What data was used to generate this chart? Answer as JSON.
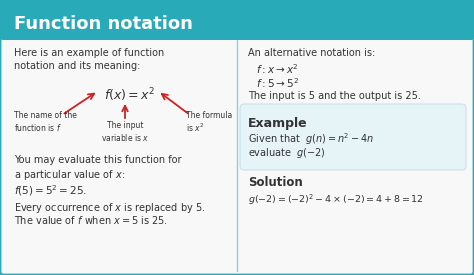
{
  "title": "Function notation",
  "title_color": "#ffffff",
  "title_bg_color": "#29aab8",
  "bg_color": "#f8f8f8",
  "border_color": "#29aab8",
  "text_color": "#333333",
  "red_color": "#cc2222",
  "example_bg": "#e6f3f7",
  "line1": "Here is an example of function",
  "line2": "notation and its meaning:",
  "annotation_formula": "$f(x) = x^2$",
  "label_name": "The name of the\nfunction is $f$",
  "label_input": "The input\nvariable is $x$",
  "label_formula": "The formula\nis $x^2$",
  "alt_notation_intro": "An alternative notation is:",
  "alt_line1": "$f: x \\rightarrow x^2$",
  "alt_line2": "$f: 5 \\rightarrow 5^2$",
  "alt_line3": "The input is 5 and the output is 25.",
  "example_title": "Example",
  "example_given": "Given that  $g(n) = n^2 - 4n$",
  "example_eval": "evaluate  $g(-2)$",
  "solution_title": "Solution",
  "solution_eq": "$g(-2) = (-2)^2 - 4 \\times (-2) = 4 + 8 = 12$",
  "eval_intro": "You may evaluate this function for",
  "eval_intro2": "a particular value of $x$:",
  "eval_eq": "$f(5) = 5^2 = 25.$",
  "replace_line1": "Every occurrence of $x$ is replaced by 5.",
  "replace_line2": "The value of $f$ when $x = 5$ is 25."
}
